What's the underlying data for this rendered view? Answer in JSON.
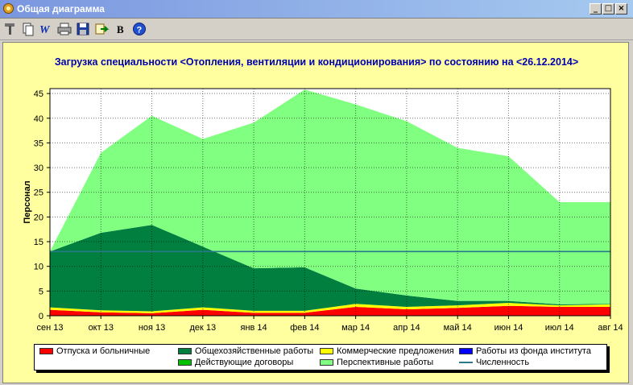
{
  "window": {
    "title": "Общая диаграмма",
    "buttons": {
      "minimize": "_",
      "maximize": "□",
      "close": "×"
    }
  },
  "toolbar": {
    "items": [
      {
        "icon": "tools-icon"
      },
      {
        "icon": "copy-icon"
      },
      {
        "icon": "word-icon"
      },
      {
        "icon": "print-icon"
      },
      {
        "icon": "save-icon"
      },
      {
        "icon": "export-icon"
      },
      {
        "icon": "bold-icon",
        "label": "B"
      },
      {
        "icon": "help-icon"
      }
    ]
  },
  "chart_data": {
    "type": "area",
    "title": "Загрузка специальности <Отопления, вентиляции и кондиционирования> по состоянию на <26.12.2014>",
    "xlabel": "",
    "ylabel": "Персонал",
    "ylim": [
      0,
      46
    ],
    "yticks": [
      0,
      5,
      10,
      15,
      20,
      25,
      30,
      35,
      40,
      45
    ],
    "grid": true,
    "legend_position": "bottom",
    "categories": [
      "сен 13",
      "окт 13",
      "ноя 13",
      "дек 13",
      "янв 14",
      "фев 14",
      "мар 14",
      "апр 14",
      "май 14",
      "июн 14",
      "июл 14",
      "авг 14"
    ],
    "series": [
      {
        "name": "Отпуска и больничные",
        "color": "#ff0000",
        "values": [
          1.2,
          0.7,
          0.5,
          1.2,
          0.6,
          0.6,
          1.8,
          1.3,
          1.6,
          2.0,
          1.8,
          1.8
        ]
      },
      {
        "name": "Коммерческие предложения",
        "color": "#ffff00",
        "values": [
          0.5,
          0.4,
          0.4,
          0.5,
          0.4,
          0.4,
          0.6,
          0.5,
          0.5,
          0.6,
          0.3,
          0.5
        ]
      },
      {
        "name": "Работы из фонда института",
        "color": "#0000ff",
        "values": [
          0,
          0,
          0,
          0,
          0,
          0,
          0,
          0,
          0,
          0,
          0,
          0
        ]
      },
      {
        "name": "Общехозяйственные работы",
        "color": "#007f3f",
        "values": [
          11.3,
          15.7,
          17.5,
          12.3,
          8.6,
          8.8,
          3.1,
          2.3,
          0.9,
          0.4,
          0.2,
          0.1
        ]
      },
      {
        "name": "Действующие договоры",
        "color": "#00c000",
        "values": [
          0,
          0,
          0,
          0,
          0,
          0,
          0,
          0,
          0,
          0,
          0,
          0
        ]
      },
      {
        "name": "Перспективные работы",
        "color": "#80ff80",
        "values": [
          0,
          16.2,
          22.1,
          21.8,
          29.5,
          36.0,
          37.3,
          35.3,
          31.0,
          29.3,
          20.7,
          20.6
        ]
      }
    ],
    "line": {
      "name": "Численность",
      "color": "#2a7a8a",
      "values": [
        13,
        13,
        13,
        13,
        13,
        13,
        13,
        13,
        13,
        13,
        13,
        13
      ]
    },
    "legend": [
      {
        "name": "Отпуска и больничные",
        "color": "#ff0000",
        "kind": "area"
      },
      {
        "name": "Общехозяйственные работы",
        "color": "#007f3f",
        "kind": "area"
      },
      {
        "name": "Коммерческие предложения",
        "color": "#ffff00",
        "kind": "area"
      },
      {
        "name": "Работы из фонда института",
        "color": "#0000ff",
        "kind": "area"
      },
      {
        "name": "Действующие договоры",
        "color": "#00c000",
        "kind": "area"
      },
      {
        "name": "Перспективные работы",
        "color": "#80ff80",
        "kind": "area"
      },
      {
        "name": "Численность",
        "color": "#2a7a8a",
        "kind": "line"
      }
    ]
  }
}
